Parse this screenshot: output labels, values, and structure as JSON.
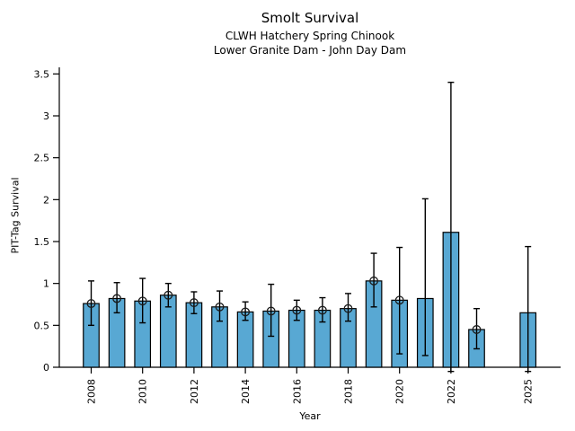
{
  "figure": {
    "background": "#ffffff"
  },
  "chart_data": {
    "type": "bar",
    "title": "Smolt Survival",
    "subtitle1": "CLWH Hatchery Spring Chinook",
    "subtitle2": "Lower Granite Dam - John Day Dam",
    "xlabel": "Year",
    "ylabel": "PIT-Tag Survival",
    "ylim": [
      0,
      3.58
    ],
    "yticks": [
      0,
      0.5,
      1,
      1.5,
      2,
      2.5,
      3,
      3.5
    ],
    "ytick_labels": [
      "0",
      "0.5",
      "1",
      "1.5",
      "2",
      "2.5",
      "3",
      "3.5"
    ],
    "xtick_labeled_years": [
      2008,
      2010,
      2012,
      2014,
      2016,
      2018,
      2020,
      2022,
      2025
    ],
    "x_range_years": [
      2008,
      2025
    ],
    "grid": false,
    "legend": "none",
    "bar_color": "#58a8d3",
    "edge_color": "#000000",
    "errorbar_color": "#000000",
    "marker_color": "#1a1a1a",
    "points": [
      {
        "year": 2008,
        "value": 0.76,
        "err_lo": 0.5,
        "err_hi": 1.03,
        "marker": true
      },
      {
        "year": 2009,
        "value": 0.82,
        "err_lo": 0.65,
        "err_hi": 1.01,
        "marker": true
      },
      {
        "year": 2010,
        "value": 0.79,
        "err_lo": 0.53,
        "err_hi": 1.06,
        "marker": true
      },
      {
        "year": 2011,
        "value": 0.86,
        "err_lo": 0.72,
        "err_hi": 1.0,
        "marker": true
      },
      {
        "year": 2012,
        "value": 0.77,
        "err_lo": 0.64,
        "err_hi": 0.9,
        "marker": true
      },
      {
        "year": 2013,
        "value": 0.72,
        "err_lo": 0.55,
        "err_hi": 0.91,
        "marker": true
      },
      {
        "year": 2014,
        "value": 0.66,
        "err_lo": 0.56,
        "err_hi": 0.78,
        "marker": true
      },
      {
        "year": 2015,
        "value": 0.67,
        "err_lo": 0.37,
        "err_hi": 0.99,
        "marker": true
      },
      {
        "year": 2016,
        "value": 0.68,
        "err_lo": 0.56,
        "err_hi": 0.8,
        "marker": true
      },
      {
        "year": 2017,
        "value": 0.68,
        "err_lo": 0.54,
        "err_hi": 0.83,
        "marker": true
      },
      {
        "year": 2018,
        "value": 0.7,
        "err_lo": 0.55,
        "err_hi": 0.88,
        "marker": true
      },
      {
        "year": 2019,
        "value": 1.03,
        "err_lo": 0.72,
        "err_hi": 1.36,
        "marker": true
      },
      {
        "year": 2020,
        "value": 0.8,
        "err_lo": 0.16,
        "err_hi": 1.43,
        "marker": true
      },
      {
        "year": 2021,
        "value": 0.82,
        "err_lo": 0.14,
        "err_hi": 2.01,
        "marker": false
      },
      {
        "year": 2022,
        "value": 1.61,
        "err_lo": -0.05,
        "err_hi": 3.4,
        "marker": false
      },
      {
        "year": 2023,
        "value": 0.45,
        "err_lo": 0.22,
        "err_hi": 0.7,
        "marker": true
      },
      {
        "year": 2025,
        "value": 0.65,
        "err_lo": -0.05,
        "err_hi": 1.44,
        "marker": false
      }
    ]
  }
}
